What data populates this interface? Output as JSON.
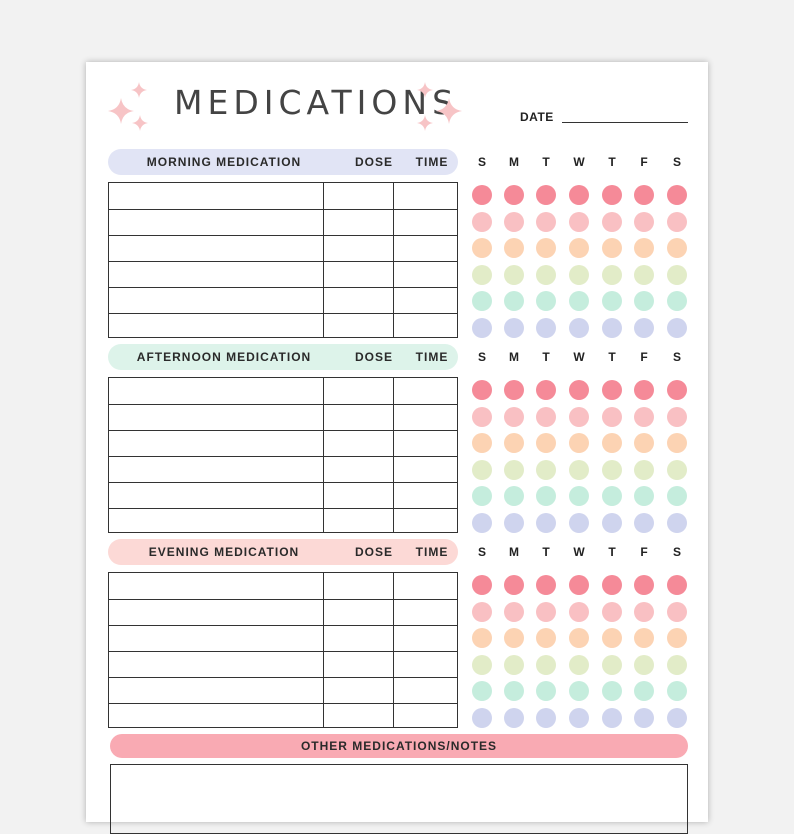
{
  "page": {
    "title": "MEDICATIONS",
    "date_label": "DATE",
    "sparkle_icon": "sparkle-icon",
    "sparkle_color": "#f7c4c6"
  },
  "days": [
    "S",
    "M",
    "T",
    "W",
    "T",
    "F",
    "S"
  ],
  "dot_colors": [
    "#f58a98",
    "#f9c0c3",
    "#fcd3b3",
    "#e2ecc8",
    "#c5eddd",
    "#cfd4ee"
  ],
  "sections": [
    {
      "key": "morning",
      "label": "MORNING MEDICATION",
      "dose_label": "DOSE",
      "time_label": "TIME",
      "color": "#e1e4f5",
      "rows": 6
    },
    {
      "key": "afternoon",
      "label": "AFTERNOON MEDICATION",
      "dose_label": "DOSE",
      "time_label": "TIME",
      "color": "#ddf3ea",
      "rows": 6
    },
    {
      "key": "evening",
      "label": "EVENING MEDICATION",
      "dose_label": "DOSE",
      "time_label": "TIME",
      "color": "#fcd9d6",
      "rows": 6
    }
  ],
  "notes": {
    "label": "OTHER MEDICATIONS/NOTES",
    "color": "#f9aab3"
  }
}
